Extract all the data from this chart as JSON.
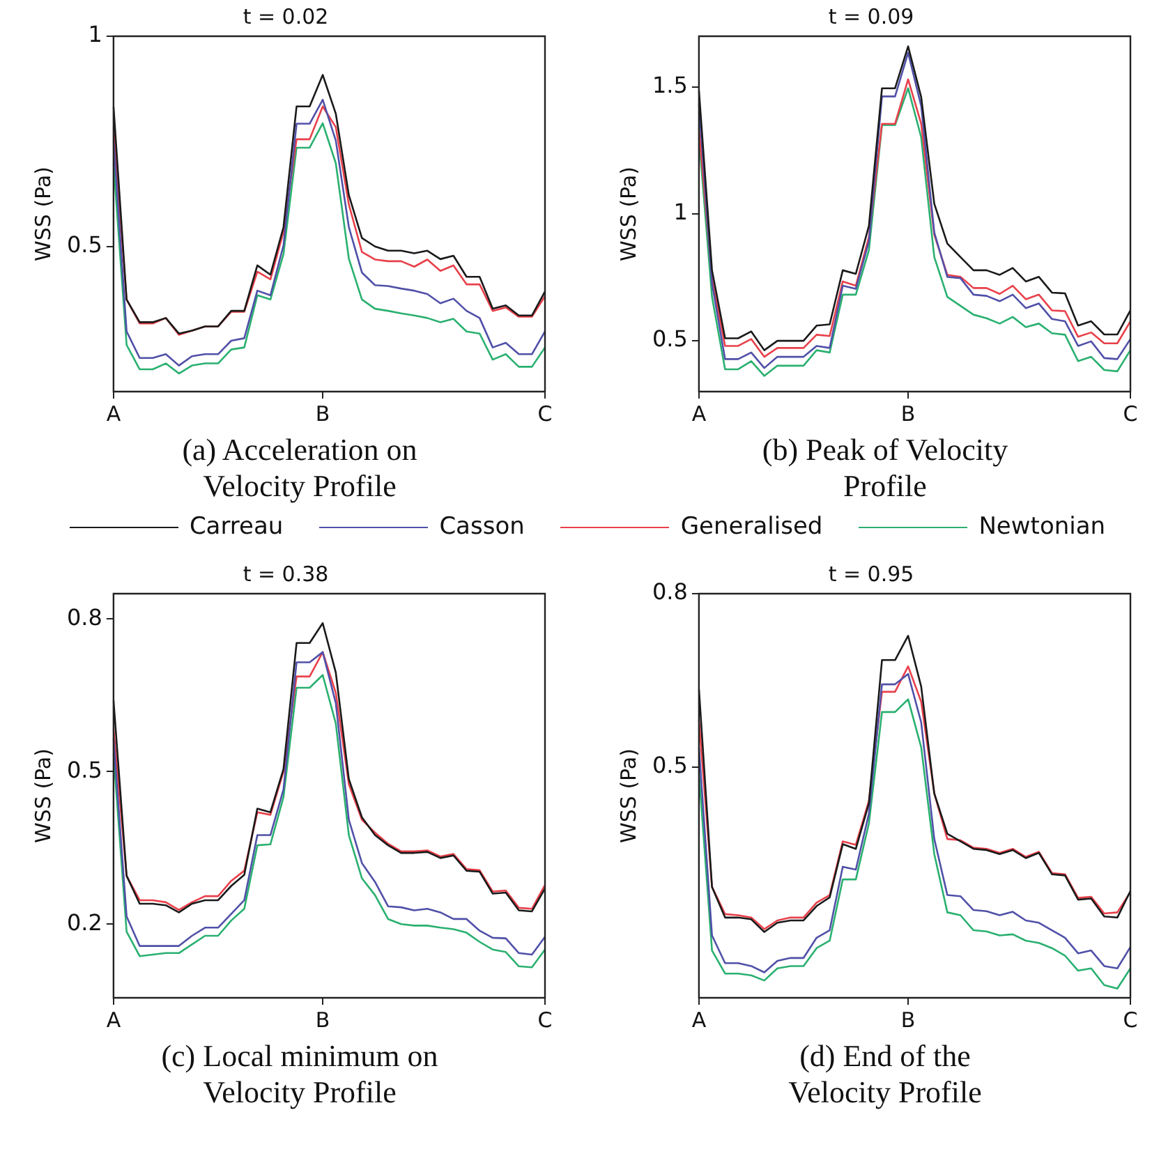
{
  "chart_data": [
    {
      "type": "line",
      "title": "t = 0.02",
      "ylabel": "WSS (Pa)",
      "annotations": [
        "(a) Acceleration on\nVelocity Profile"
      ],
      "legend": "bottom",
      "ylim": [
        0.155,
        1
      ],
      "yticks": [
        0.5,
        1
      ],
      "categories": [
        "A",
        null,
        null,
        null,
        null,
        null,
        null,
        null,
        null,
        null,
        null,
        null,
        null,
        null,
        null,
        null,
        "B",
        null,
        null,
        null,
        null,
        null,
        null,
        null,
        null,
        null,
        null,
        null,
        null,
        null,
        null,
        null,
        null,
        "C"
      ],
      "series": [
        {
          "name": "Carreau",
          "color": "#1a1a1a",
          "values": [
            0.833,
            0.374,
            0.32,
            0.32,
            0.33,
            0.293,
            0.3,
            0.31,
            0.31,
            0.347,
            0.347,
            0.455,
            0.433,
            0.546,
            0.833,
            0.833,
            0.908,
            0.816,
            0.622,
            0.52,
            0.5,
            0.49,
            0.49,
            0.484,
            0.49,
            0.47,
            0.478,
            0.428,
            0.428,
            0.352,
            0.36,
            0.336,
            0.336,
            0.393
          ]
        },
        {
          "name": "Casson",
          "color": "#5050a8",
          "values": [
            0.752,
            0.298,
            0.235,
            0.235,
            0.244,
            0.217,
            0.239,
            0.244,
            0.244,
            0.276,
            0.282,
            0.395,
            0.384,
            0.503,
            0.792,
            0.792,
            0.849,
            0.752,
            0.546,
            0.438,
            0.408,
            0.406,
            0.4,
            0.395,
            0.387,
            0.365,
            0.376,
            0.347,
            0.33,
            0.26,
            0.271,
            0.244,
            0.244,
            0.298
          ]
        },
        {
          "name": "Generalised",
          "color": "#e8404a",
          "values": [
            0.784,
            0.374,
            0.317,
            0.317,
            0.33,
            0.29,
            0.3,
            0.31,
            0.31,
            0.345,
            0.345,
            0.44,
            0.422,
            0.535,
            0.755,
            0.755,
            0.833,
            0.784,
            0.6,
            0.487,
            0.469,
            0.465,
            0.465,
            0.452,
            0.469,
            0.442,
            0.455,
            0.41,
            0.41,
            0.347,
            0.355,
            0.333,
            0.333,
            0.382
          ]
        },
        {
          "name": "Newtonian",
          "color": "#2ab070",
          "values": [
            0.698,
            0.266,
            0.208,
            0.208,
            0.222,
            0.198,
            0.217,
            0.222,
            0.222,
            0.255,
            0.26,
            0.384,
            0.374,
            0.482,
            0.735,
            0.735,
            0.793,
            0.698,
            0.471,
            0.374,
            0.352,
            0.347,
            0.341,
            0.336,
            0.33,
            0.32,
            0.328,
            0.298,
            0.293,
            0.231,
            0.244,
            0.214,
            0.214,
            0.26
          ]
        }
      ]
    },
    {
      "type": "line",
      "title": "t = 0.09",
      "ylabel": "WSS (Pa)",
      "annotations": [
        "(b) Peak of Velocity\nProfile"
      ],
      "ylim": [
        0.3,
        1.7
      ],
      "yticks": [
        0.5,
        1,
        1.5
      ],
      "categories": [
        "A",
        null,
        null,
        null,
        null,
        null,
        null,
        null,
        null,
        null,
        null,
        null,
        null,
        null,
        null,
        null,
        "B",
        null,
        null,
        null,
        null,
        null,
        null,
        null,
        null,
        null,
        null,
        null,
        null,
        null,
        null,
        null,
        null,
        "C"
      ],
      "series": [
        {
          "color": "#1a1a1a",
          "values": [
            1.486,
            0.778,
            0.51,
            0.51,
            0.537,
            0.463,
            0.5,
            0.5,
            0.5,
            0.56,
            0.565,
            0.778,
            0.764,
            0.953,
            1.495,
            1.495,
            1.66,
            1.46,
            1.04,
            0.883,
            0.83,
            0.778,
            0.778,
            0.76,
            0.787,
            0.734,
            0.752,
            0.69,
            0.687,
            0.56,
            0.577,
            0.525,
            0.525,
            0.62
          ]
        },
        {
          "color": "#5050a8",
          "values": [
            1.434,
            0.726,
            0.428,
            0.428,
            0.454,
            0.393,
            0.437,
            0.437,
            0.437,
            0.48,
            0.472,
            0.717,
            0.705,
            0.892,
            1.463,
            1.463,
            1.635,
            1.425,
            0.927,
            0.752,
            0.747,
            0.682,
            0.677,
            0.656,
            0.682,
            0.629,
            0.647,
            0.586,
            0.577,
            0.48,
            0.498,
            0.432,
            0.428,
            0.507
          ]
        },
        {
          "color": "#e8404a",
          "values": [
            1.337,
            0.743,
            0.48,
            0.48,
            0.507,
            0.437,
            0.472,
            0.472,
            0.472,
            0.524,
            0.519,
            0.734,
            0.717,
            0.909,
            1.355,
            1.355,
            1.53,
            1.355,
            0.918,
            0.76,
            0.752,
            0.708,
            0.708,
            0.685,
            0.717,
            0.664,
            0.682,
            0.62,
            0.617,
            0.516,
            0.533,
            0.49,
            0.49,
            0.577
          ]
        },
        {
          "color": "#2ab070",
          "values": [
            1.302,
            0.673,
            0.388,
            0.388,
            0.42,
            0.362,
            0.402,
            0.402,
            0.402,
            0.463,
            0.454,
            0.682,
            0.682,
            0.857,
            1.35,
            1.35,
            1.495,
            1.302,
            0.83,
            0.673,
            0.638,
            0.603,
            0.589,
            0.568,
            0.594,
            0.554,
            0.568,
            0.53,
            0.524,
            0.42,
            0.437,
            0.385,
            0.38,
            0.463
          ]
        }
      ]
    },
    {
      "type": "line",
      "title": "t = 0.38",
      "ylabel": "WSS (Pa)",
      "annotations": [
        "(c) Local minimum on\nVelocity Profile"
      ],
      "ylim": [
        0.055,
        0.85
      ],
      "yticks": [
        0.2,
        0.5,
        0.8
      ],
      "categories": [
        "A",
        null,
        null,
        null,
        null,
        null,
        null,
        null,
        null,
        null,
        null,
        null,
        null,
        null,
        null,
        null,
        "B",
        null,
        null,
        null,
        null,
        null,
        null,
        null,
        null,
        null,
        null,
        null,
        null,
        null,
        null,
        null,
        null,
        "C"
      ],
      "series": [
        {
          "color": "#1a1a1a",
          "values": [
            0.64,
            0.295,
            0.24,
            0.24,
            0.237,
            0.223,
            0.24,
            0.247,
            0.247,
            0.275,
            0.297,
            0.427,
            0.42,
            0.505,
            0.753,
            0.753,
            0.792,
            0.695,
            0.485,
            0.41,
            0.375,
            0.355,
            0.34,
            0.34,
            0.342,
            0.33,
            0.335,
            0.305,
            0.303,
            0.26,
            0.262,
            0.227,
            0.225,
            0.27
          ]
        },
        {
          "color": "#5050a8",
          "values": [
            0.565,
            0.215,
            0.157,
            0.157,
            0.157,
            0.157,
            0.177,
            0.193,
            0.193,
            0.22,
            0.247,
            0.375,
            0.375,
            0.465,
            0.715,
            0.715,
            0.735,
            0.635,
            0.405,
            0.32,
            0.283,
            0.235,
            0.233,
            0.227,
            0.23,
            0.223,
            0.21,
            0.21,
            0.187,
            0.173,
            0.172,
            0.143,
            0.14,
            0.175
          ]
        },
        {
          "color": "#e8404a",
          "values": [
            0.585,
            0.295,
            0.247,
            0.247,
            0.243,
            0.228,
            0.243,
            0.255,
            0.255,
            0.285,
            0.305,
            0.42,
            0.415,
            0.5,
            0.687,
            0.687,
            0.735,
            0.655,
            0.475,
            0.405,
            0.38,
            0.358,
            0.343,
            0.343,
            0.345,
            0.333,
            0.338,
            0.308,
            0.306,
            0.264,
            0.266,
            0.232,
            0.23,
            0.277
          ]
        },
        {
          "color": "#2ab070",
          "values": [
            0.535,
            0.185,
            0.137,
            0.14,
            0.143,
            0.143,
            0.16,
            0.177,
            0.177,
            0.207,
            0.23,
            0.355,
            0.357,
            0.45,
            0.665,
            0.665,
            0.69,
            0.595,
            0.375,
            0.29,
            0.257,
            0.21,
            0.2,
            0.197,
            0.197,
            0.193,
            0.19,
            0.183,
            0.165,
            0.15,
            0.145,
            0.117,
            0.115,
            0.15
          ]
        }
      ]
    },
    {
      "type": "line",
      "title": "t = 0.95",
      "ylabel": "WSS (Pa)",
      "annotations": [
        "(d) End of the\nVelocity Profile"
      ],
      "ylim": [
        0.1,
        0.8
      ],
      "yticks": [
        0.5,
        0.8
      ],
      "categories": [
        "A",
        null,
        null,
        null,
        null,
        null,
        null,
        null,
        null,
        null,
        null,
        null,
        null,
        null,
        null,
        null,
        "B",
        null,
        null,
        null,
        null,
        null,
        null,
        null,
        null,
        null,
        null,
        null,
        null,
        null,
        null,
        null,
        null,
        "C"
      ],
      "series": [
        {
          "color": "#1a1a1a",
          "values": [
            0.635,
            0.292,
            0.239,
            0.239,
            0.236,
            0.214,
            0.23,
            0.234,
            0.234,
            0.259,
            0.274,
            0.366,
            0.358,
            0.437,
            0.685,
            0.685,
            0.727,
            0.639,
            0.454,
            0.384,
            0.371,
            0.358,
            0.356,
            0.349,
            0.356,
            0.342,
            0.351,
            0.314,
            0.312,
            0.27,
            0.272,
            0.241,
            0.239,
            0.285
          ]
        },
        {
          "color": "#5050a8",
          "values": [
            0.534,
            0.208,
            0.16,
            0.16,
            0.155,
            0.144,
            0.164,
            0.169,
            0.169,
            0.204,
            0.217,
            0.327,
            0.322,
            0.419,
            0.643,
            0.643,
            0.661,
            0.577,
            0.375,
            0.278,
            0.276,
            0.252,
            0.25,
            0.243,
            0.249,
            0.234,
            0.23,
            0.217,
            0.204,
            0.177,
            0.182,
            0.155,
            0.151,
            0.188
          ]
        },
        {
          "color": "#e8404a",
          "values": [
            0.582,
            0.292,
            0.245,
            0.243,
            0.239,
            0.219,
            0.234,
            0.239,
            0.239,
            0.265,
            0.278,
            0.371,
            0.365,
            0.441,
            0.63,
            0.63,
            0.674,
            0.613,
            0.454,
            0.375,
            0.373,
            0.36,
            0.358,
            0.351,
            0.358,
            0.344,
            0.353,
            0.316,
            0.314,
            0.273,
            0.275,
            0.246,
            0.248,
            0.283
          ]
        },
        {
          "color": "#2ab070",
          "values": [
            0.49,
            0.182,
            0.142,
            0.142,
            0.139,
            0.13,
            0.151,
            0.155,
            0.155,
            0.186,
            0.199,
            0.305,
            0.305,
            0.402,
            0.595,
            0.595,
            0.617,
            0.534,
            0.349,
            0.248,
            0.243,
            0.217,
            0.215,
            0.208,
            0.21,
            0.199,
            0.195,
            0.186,
            0.173,
            0.147,
            0.151,
            0.122,
            0.116,
            0.151
          ]
        }
      ]
    }
  ]
}
